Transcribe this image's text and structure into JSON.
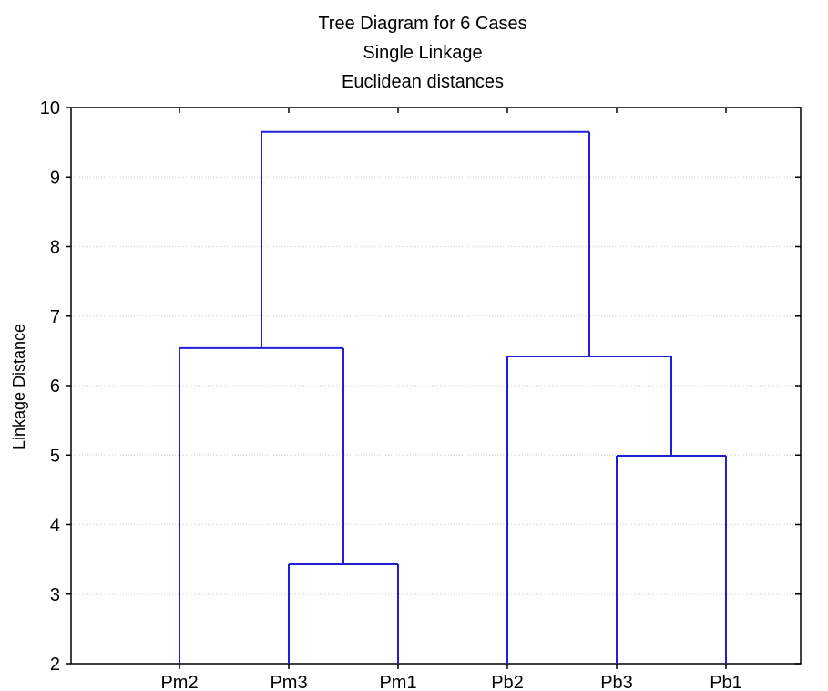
{
  "chart_data": {
    "type": "dendrogram",
    "title": "Tree Diagram for 6 Cases",
    "subtitle": [
      "Single Linkage",
      "Euclidean distances"
    ],
    "xlabel": "",
    "ylabel": "Linkage Distance",
    "ylim": [
      2,
      10
    ],
    "yticks": [
      2,
      3,
      4,
      5,
      6,
      7,
      8,
      9,
      10
    ],
    "grid": true,
    "leaf_order": [
      "Pm2",
      "Pm3",
      "Pm1",
      "Pb2",
      "Pb3",
      "Pb1"
    ],
    "merges": [
      {
        "left": "Pm3",
        "right": "Pm1",
        "height": 3.43
      },
      {
        "left": "Pb3",
        "right": "Pb1",
        "height": 4.99
      },
      {
        "left": "Pb2",
        "right": "Pb3+Pb1",
        "height": 6.42
      },
      {
        "left": "Pm2",
        "right": "Pm3+Pm1",
        "height": 6.54
      },
      {
        "left": "Pm2+Pm3+Pm1",
        "right": "Pb2+Pb3+Pb1",
        "height": 9.65
      }
    ],
    "colors": {
      "branch": "#1f1fd6",
      "axis": "#000000",
      "grid": "#cfcfcf"
    }
  }
}
